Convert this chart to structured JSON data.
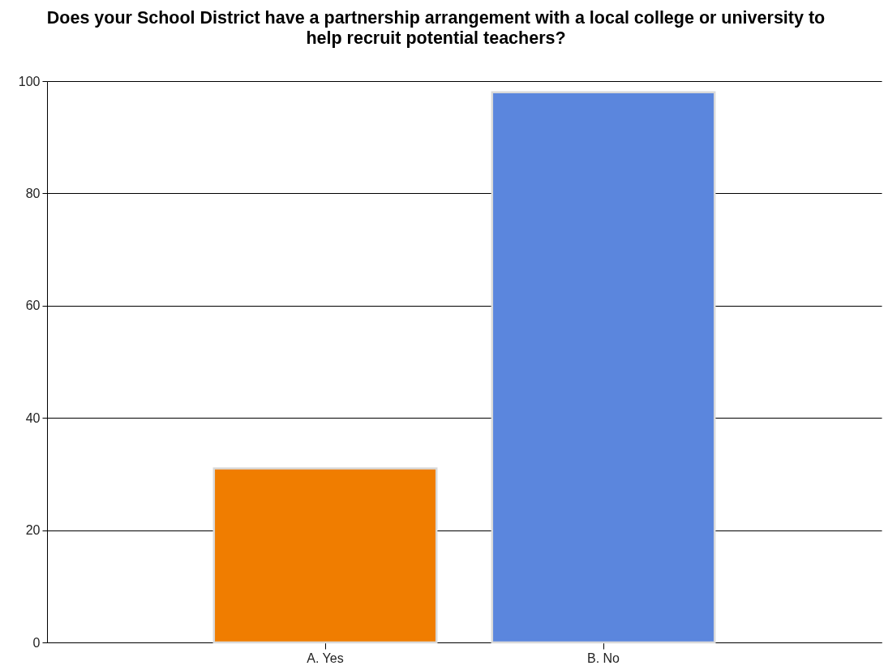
{
  "chart_data": {
    "type": "bar",
    "title": "Does your School District have a partnership arrangement with a local college or university to help recruit potential teachers?",
    "categories": [
      "A. Yes",
      "B. No"
    ],
    "values": [
      31,
      98
    ],
    "colors": [
      "#f07d00",
      "#5b86dd"
    ],
    "ylim": [
      0,
      100
    ],
    "yticks": [
      0,
      20,
      40,
      60,
      80,
      100
    ],
    "grid": "y"
  }
}
